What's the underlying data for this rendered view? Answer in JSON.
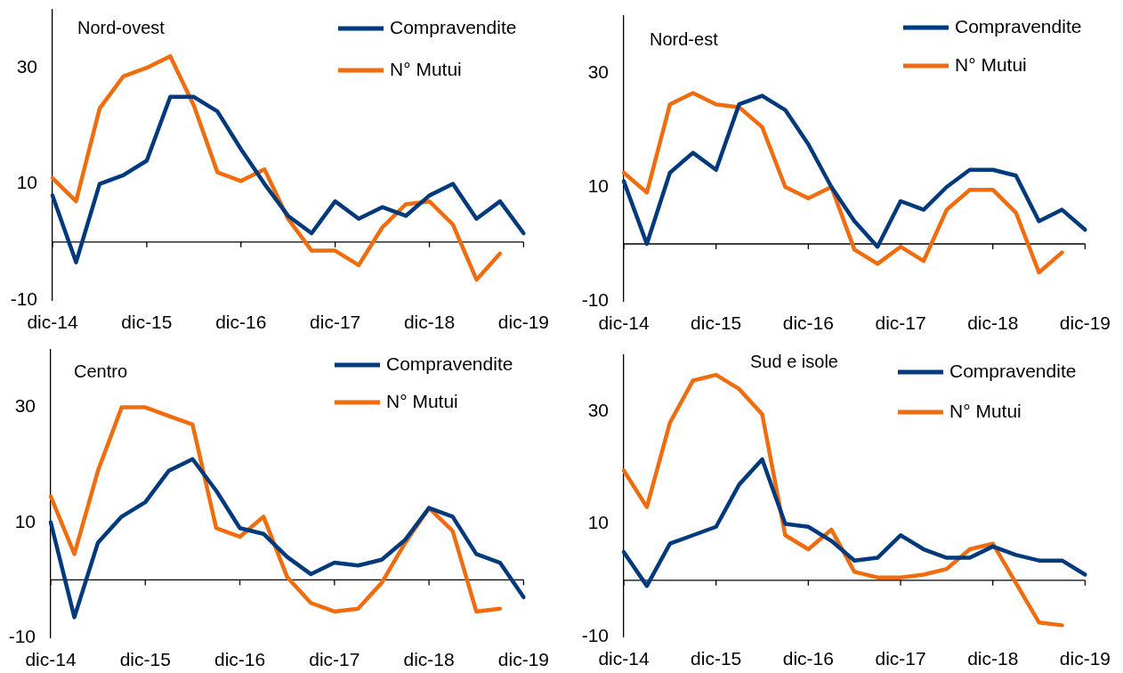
{
  "chart_data": [
    {
      "type": "line",
      "title": "Nord-ovest",
      "categories": [
        "dic-14",
        null,
        null,
        null,
        "dic-15",
        null,
        null,
        null,
        "dic-16",
        null,
        null,
        null,
        "dic-17",
        null,
        null,
        null,
        "dic-18",
        null,
        null,
        null,
        "dic-19"
      ],
      "series": [
        {
          "name": "Compravendite",
          "color": "#003a7c",
          "values": [
            8,
            -3.5,
            10,
            11.5,
            14,
            25,
            25,
            22.5,
            16,
            10,
            4.5,
            1.5,
            7,
            4,
            6,
            4.5,
            8,
            10,
            4,
            7,
            1.5
          ]
        },
        {
          "name": "N° Mutui",
          "color": "#f06d0f",
          "values": [
            11,
            7,
            23,
            28.5,
            30,
            32,
            23.5,
            12,
            10.5,
            12.5,
            4,
            -1.5,
            -1.5,
            -4,
            2.5,
            6.5,
            7,
            3,
            -6.5,
            -2,
            null
          ]
        }
      ],
      "ylim": [
        -10,
        40
      ],
      "yticks": [
        -10,
        10,
        30
      ],
      "grid": false,
      "legend": "top right",
      "marker": "none"
    },
    {
      "type": "line",
      "title": "Nord-est",
      "categories": [
        "dic-14",
        null,
        null,
        null,
        "dic-15",
        null,
        null,
        null,
        "dic-16",
        null,
        null,
        null,
        "dic-17",
        null,
        null,
        null,
        "dic-18",
        null,
        null,
        null,
        "dic-19"
      ],
      "series": [
        {
          "name": "Compravendite",
          "color": "#003a7c",
          "values": [
            11,
            0,
            12.5,
            16,
            13,
            24.5,
            26,
            23.5,
            17.5,
            10,
            4,
            -0.5,
            7.5,
            6,
            10,
            13,
            13,
            12,
            4,
            6,
            2.5
          ]
        },
        {
          "name": "N° Mutui",
          "color": "#f06d0f",
          "values": [
            12.5,
            9,
            24.5,
            26.5,
            24.5,
            24,
            20.5,
            10,
            8,
            10,
            -1,
            -3.5,
            -0.5,
            -3,
            6,
            9.5,
            9.5,
            5.5,
            -5,
            -1.5,
            null
          ]
        }
      ],
      "ylim": [
        -10,
        40
      ],
      "yticks": [
        -10,
        10,
        30
      ],
      "grid": false,
      "legend": "top right",
      "marker": "none"
    },
    {
      "type": "line",
      "title": "Centro",
      "categories": [
        "dic-14",
        null,
        null,
        null,
        "dic-15",
        null,
        null,
        null,
        "dic-16",
        null,
        null,
        null,
        "dic-17",
        null,
        null,
        null,
        "dic-18",
        null,
        null,
        null,
        "dic-19"
      ],
      "series": [
        {
          "name": "Compravendite",
          "color": "#003a7c",
          "values": [
            10,
            -6.5,
            6.5,
            11,
            13.5,
            19,
            21,
            15.5,
            9,
            8,
            4,
            1,
            3,
            2.5,
            3.5,
            7,
            12.5,
            11,
            4.5,
            3,
            -3
          ]
        },
        {
          "name": "N° Mutui",
          "color": "#f06d0f",
          "values": [
            14.5,
            4.5,
            19,
            30,
            30,
            28.5,
            27,
            9,
            7.5,
            11,
            0.5,
            -4,
            -5.5,
            -5,
            -0.5,
            6.5,
            12.5,
            8.5,
            -5.5,
            -5,
            null
          ]
        }
      ],
      "ylim": [
        -10,
        40
      ],
      "yticks": [
        -10,
        10,
        30
      ],
      "grid": false,
      "legend": "top right",
      "marker": "none"
    },
    {
      "type": "line",
      "title": "Sud e isole",
      "categories": [
        "dic-14",
        null,
        null,
        null,
        "dic-15",
        null,
        null,
        null,
        "dic-16",
        null,
        null,
        null,
        "dic-17",
        null,
        null,
        null,
        "dic-18",
        null,
        null,
        null,
        "dic-19"
      ],
      "series": [
        {
          "name": "Compravendite",
          "color": "#003a7c",
          "values": [
            5,
            -1,
            6.5,
            8,
            9.5,
            17,
            21.5,
            10,
            9.5,
            7,
            3.5,
            4,
            8,
            5.5,
            4,
            4,
            6,
            4.5,
            3.5,
            3.5,
            1
          ]
        },
        {
          "name": "N° Mutui",
          "color": "#f06d0f",
          "values": [
            19.5,
            13,
            28,
            35.5,
            36.5,
            34,
            29.5,
            8,
            5.5,
            9,
            1.5,
            0.5,
            0.5,
            1,
            2,
            5.5,
            6.5,
            -0.5,
            -7.5,
            -8,
            null
          ]
        }
      ],
      "ylim": [
        -10,
        40
      ],
      "yticks": [
        -10,
        10,
        30
      ],
      "grid": false,
      "legend": "top right",
      "marker": "none"
    }
  ]
}
